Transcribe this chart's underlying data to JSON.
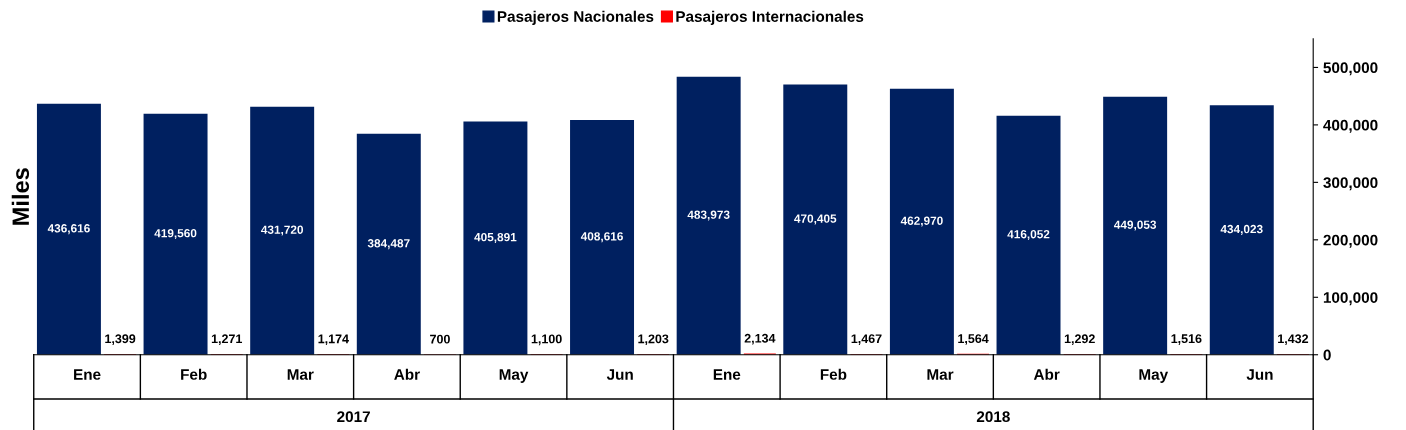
{
  "chart_data": {
    "type": "bar",
    "ylabel": "Miles",
    "categories": [
      "Ene",
      "Feb",
      "Mar",
      "Abr",
      "May",
      "Jun",
      "Ene",
      "Feb",
      "Mar",
      "Abr",
      "May",
      "Jun"
    ],
    "series": [
      {
        "name": "Pasajeros Nacionales",
        "color": "#002060",
        "values": [
          436616,
          419560,
          431720,
          384487,
          405891,
          408616,
          483973,
          470405,
          462970,
          416052,
          449053,
          434023
        ],
        "value_labels": [
          "436,616",
          "419,560",
          "431,720",
          "384,487",
          "405,891",
          "408,616",
          "483,973",
          "470,405",
          "462,970",
          "416,052",
          "449,053",
          "434,023"
        ]
      },
      {
        "name": "Pasajeros Internacionales",
        "color": "#ff0000",
        "values": [
          1399,
          1271,
          1174,
          700,
          1100,
          1203,
          2134,
          1467,
          1564,
          1292,
          1516,
          1432
        ],
        "value_labels": [
          "1,399",
          "1,271",
          "1,174",
          "700",
          "1,100",
          "1,203",
          "2,134",
          "1,467",
          "1,564",
          "1,292",
          "1,516",
          "1,432"
        ]
      }
    ],
    "annotations": [
      "2017",
      "2018"
    ],
    "ylim": [
      0,
      550000
    ],
    "yticks": [
      {
        "value": 0,
        "label": "0"
      },
      {
        "value": 100000,
        "label": "100,000"
      },
      {
        "value": 200000,
        "label": "200,000"
      },
      {
        "value": 300000,
        "label": "300,000"
      },
      {
        "value": 400000,
        "label": "400,000"
      },
      {
        "value": 500000,
        "label": "500,000"
      }
    ],
    "legend": "top",
    "grid": false
  }
}
